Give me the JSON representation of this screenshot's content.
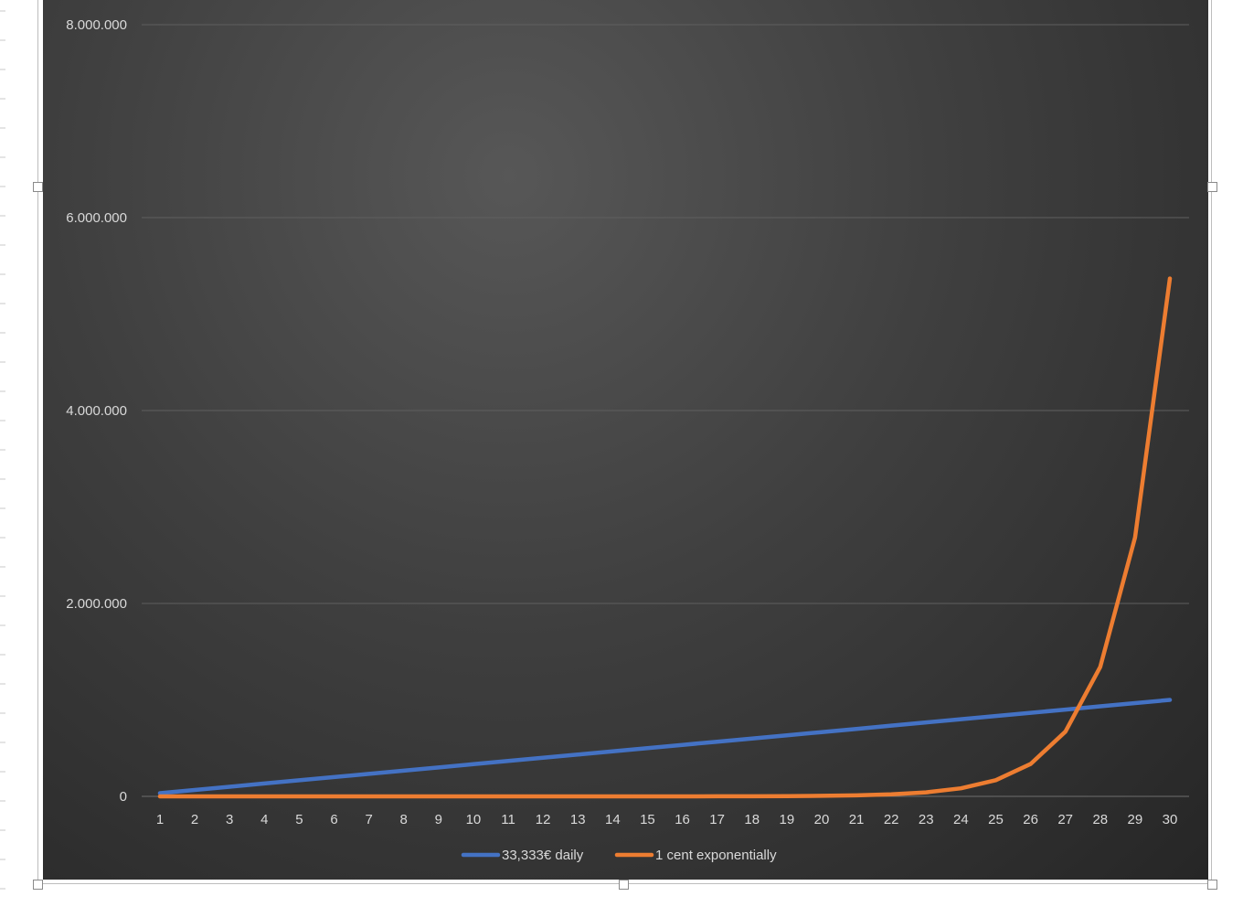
{
  "chart_data": {
    "type": "line",
    "x": [
      1,
      2,
      3,
      4,
      5,
      6,
      7,
      8,
      9,
      10,
      11,
      12,
      13,
      14,
      15,
      16,
      17,
      18,
      19,
      20,
      21,
      22,
      23,
      24,
      25,
      26,
      27,
      28,
      29,
      30
    ],
    "y_ticks": [
      "0",
      "2.000.000",
      "4.000.000",
      "6.000.000",
      "8.000.000"
    ],
    "y_tick_values": [
      0,
      2000000,
      4000000,
      6000000,
      8000000
    ],
    "ylim": [
      0,
      8000000
    ],
    "grid": true,
    "legend_position": "bottom",
    "series": [
      {
        "name": "33,333€ daily",
        "color": "#4472C4",
        "values": [
          33333,
          66666,
          99999,
          133332,
          166665,
          199998,
          233331,
          266664,
          299997,
          333330,
          366663,
          399996,
          433329,
          466662,
          499995,
          533328,
          566661,
          599994,
          633327,
          666660,
          699993,
          733326,
          766659,
          799992,
          833325,
          866658,
          899991,
          933324,
          966657,
          999990
        ]
      },
      {
        "name": "1 cent exponentially",
        "color": "#ED7D31",
        "values": [
          0.01,
          0.02,
          0.04,
          0.08,
          0.16,
          0.32,
          0.64,
          1.28,
          2.56,
          5.12,
          10.24,
          20.48,
          40.96,
          81.92,
          163.84,
          327.68,
          655.36,
          1310.72,
          2621.44,
          5242.88,
          10485.76,
          20971.52,
          41943.04,
          83886.08,
          167772.16,
          335544.32,
          671088.64,
          1342177.28,
          2684354.56,
          5368709.12
        ]
      }
    ]
  }
}
